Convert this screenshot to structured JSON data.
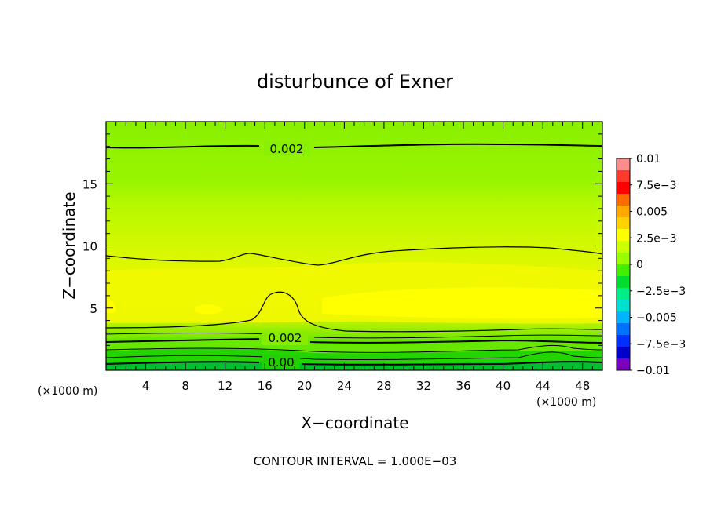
{
  "chart_data": {
    "type": "contour",
    "title": "disturbunce of Exner",
    "xlabel": "X−coordinate",
    "ylabel": "Z−coordinate",
    "x_unit": "(×1000 m)",
    "y_unit": "(×1000 m)",
    "xlim": [
      0,
      50
    ],
    "ylim": [
      0,
      20
    ],
    "x_ticks": [
      4,
      8,
      12,
      16,
      20,
      24,
      28,
      32,
      36,
      40,
      44,
      48
    ],
    "y_ticks": [
      5,
      10,
      15
    ],
    "footer": "CONTOUR INTERVAL = 1.000E−03",
    "contour_labels": [
      "0.002",
      "0.002",
      "0.00"
    ],
    "colorbar": {
      "labels": [
        "0.01",
        "7.5e−3",
        "0.005",
        "2.5e−3",
        "0",
        "−2.5e−3",
        "−0.005",
        "−7.5e−3",
        "−0.01"
      ],
      "colors": [
        "#ff8c8c",
        "#ff3a2a",
        "#ff0000",
        "#ff6a00",
        "#ffa800",
        "#ffd200",
        "#ffff00",
        "#ccff00",
        "#99ff00",
        "#44ee00",
        "#00dd30",
        "#00ee88",
        "#00e0d0",
        "#00b4ff",
        "#0070ff",
        "#0030ff",
        "#0000cc",
        "#7a00c0"
      ]
    },
    "grid": false,
    "legend": "colorbar-right"
  }
}
